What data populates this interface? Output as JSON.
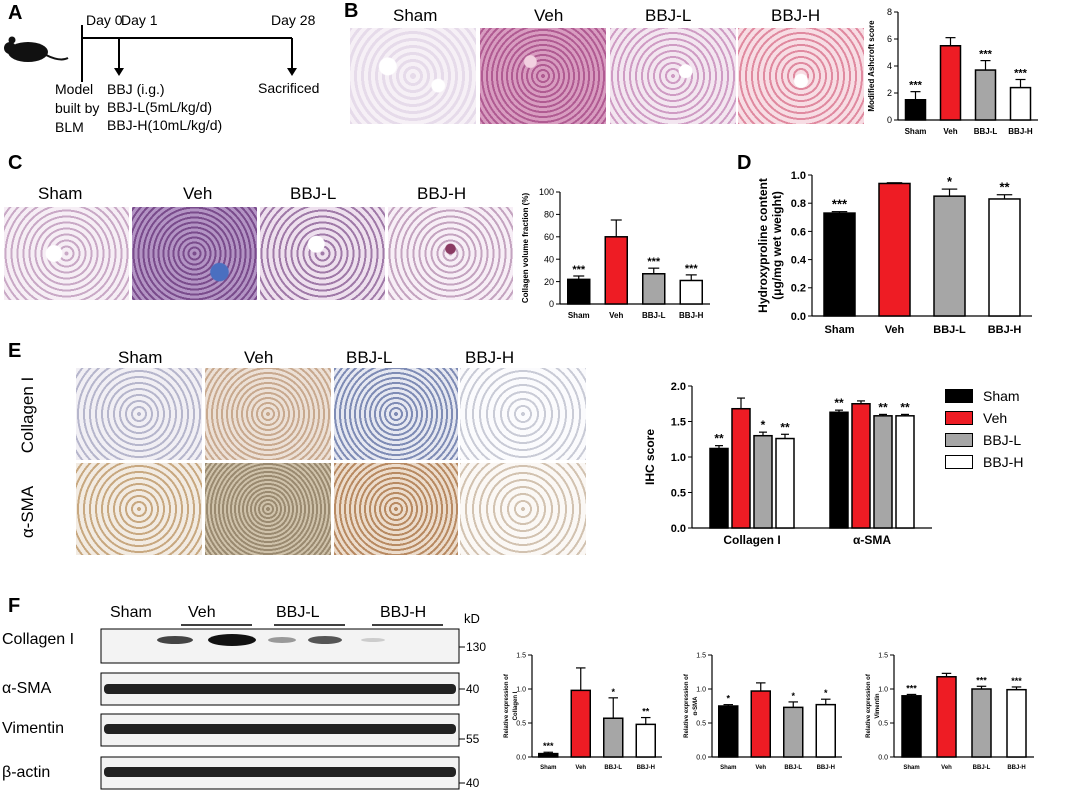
{
  "panels": {
    "A": "A",
    "B": "B",
    "C": "C",
    "D": "D",
    "E": "E",
    "F": "F"
  },
  "timeline": {
    "day0": "Day 0",
    "day1": "Day 1",
    "day28": "Day 28",
    "model_lines": [
      "Model",
      "built by",
      "BLM"
    ],
    "treat_lines": [
      "BBJ (i.g.)",
      "BBJ-L(5mL/kg/d)",
      "BBJ-H(10mL/kg/d)"
    ],
    "sacrificed": "Sacrificed"
  },
  "groups": [
    "Sham",
    "Veh",
    "BBJ-L",
    "BBJ-H"
  ],
  "ihc_rows": [
    "Collagen I",
    "α-SMA"
  ],
  "blot": {
    "unit": "kD",
    "rows": [
      "Collagen I",
      "α-SMA",
      "Vimentin",
      "β-actin"
    ],
    "markers": [
      "130",
      "40",
      "55",
      "40"
    ]
  },
  "colors": {
    "Sham": "#000000",
    "Veh": "#ee1c24",
    "BBJ-L": "#a6a6a6",
    "BBJ-H": "#ffffff"
  },
  "chart_data": [
    {
      "type": "bar",
      "id": "ashcroft",
      "ylabel": "Modified Ashcroft score",
      "ylim": [
        0,
        8
      ],
      "yticks": [
        0,
        2,
        4,
        6,
        8
      ],
      "categories": [
        "Sham",
        "Veh",
        "BBJ-L",
        "BBJ-H"
      ],
      "values": [
        1.5,
        5.5,
        3.7,
        2.4
      ],
      "errors": [
        0.6,
        0.6,
        0.7,
        0.6
      ],
      "sig": [
        "***",
        "",
        "***",
        "***"
      ]
    },
    {
      "type": "bar",
      "id": "collagen_vol",
      "ylabel": "Collagen volume fraction (%)",
      "ylim": [
        0,
        100
      ],
      "yticks": [
        0,
        20,
        40,
        60,
        80,
        100
      ],
      "categories": [
        "Sham",
        "Veh",
        "BBJ-L",
        "BBJ-H"
      ],
      "values": [
        22,
        60,
        27,
        21
      ],
      "errors": [
        3,
        15,
        5,
        5
      ],
      "sig": [
        "***",
        "",
        "***",
        "***"
      ]
    },
    {
      "type": "bar",
      "id": "hydroxyproline",
      "ylabel": "Hydroxyproline content (μg/mg wet weight)",
      "ylim": [
        0,
        1.0
      ],
      "yticks": [
        "0.0",
        "0.2",
        "0.4",
        "0.6",
        "0.8",
        "1.0"
      ],
      "categories": [
        "Sham",
        "Veh",
        "BBJ-L",
        "BBJ-H"
      ],
      "values": [
        0.73,
        0.94,
        0.85,
        0.83
      ],
      "errors": [
        0.01,
        0.005,
        0.05,
        0.03
      ],
      "sig": [
        "***",
        "",
        "*",
        "**"
      ]
    },
    {
      "type": "bar",
      "id": "ihc",
      "ylabel": "IHC score",
      "ylim": [
        0,
        2.0
      ],
      "yticks": [
        "0.0",
        "0.5",
        "1.0",
        "1.5",
        "2.0"
      ],
      "categories": [
        "Collagen I",
        "α-SMA"
      ],
      "series": [
        {
          "name": "Sham",
          "values": [
            1.12,
            1.63
          ],
          "errors": [
            0.04,
            0.03
          ],
          "sig": [
            "**",
            "**"
          ]
        },
        {
          "name": "Veh",
          "values": [
            1.68,
            1.75
          ],
          "errors": [
            0.15,
            0.04
          ],
          "sig": [
            "",
            ""
          ]
        },
        {
          "name": "BBJ-L",
          "values": [
            1.3,
            1.58
          ],
          "errors": [
            0.05,
            0.02
          ],
          "sig": [
            "*",
            "**"
          ]
        },
        {
          "name": "BBJ-H",
          "values": [
            1.26,
            1.58
          ],
          "errors": [
            0.06,
            0.02
          ],
          "sig": [
            "**",
            "**"
          ]
        }
      ]
    },
    {
      "type": "bar",
      "id": "rel_col",
      "ylabel": "Relative expression of Collagen I",
      "ylim": [
        0,
        1.5
      ],
      "yticks": [
        "0.0",
        "0.5",
        "1.0",
        "1.5"
      ],
      "categories": [
        "Sham",
        "Veh",
        "BBJ-L",
        "BBJ-H"
      ],
      "values": [
        0.05,
        0.98,
        0.57,
        0.48
      ],
      "errors": [
        0.02,
        0.33,
        0.3,
        0.1
      ],
      "sig": [
        "***",
        "",
        "*",
        "**"
      ]
    },
    {
      "type": "bar",
      "id": "rel_sma",
      "ylabel": "Relative expression of α-SMA",
      "ylim": [
        0,
        1.5
      ],
      "yticks": [
        "0.0",
        "0.5",
        "1.0",
        "1.5"
      ],
      "categories": [
        "Sham",
        "Veh",
        "BBJ-L",
        "BBJ-H"
      ],
      "values": [
        0.75,
        0.97,
        0.73,
        0.77
      ],
      "errors": [
        0.02,
        0.12,
        0.08,
        0.08
      ],
      "sig": [
        "*",
        "",
        "*",
        "*"
      ]
    },
    {
      "type": "bar",
      "id": "rel_vim",
      "ylabel": "Relative expression of Vimentin",
      "ylim": [
        0,
        1.5
      ],
      "yticks": [
        "0.0",
        "0.5",
        "1.0",
        "1.5"
      ],
      "categories": [
        "Sham",
        "Veh",
        "BBJ-L",
        "BBJ-H"
      ],
      "values": [
        0.9,
        1.18,
        1.0,
        0.99
      ],
      "errors": [
        0.02,
        0.05,
        0.04,
        0.04
      ],
      "sig": [
        "***",
        "",
        "***",
        "***"
      ]
    }
  ]
}
